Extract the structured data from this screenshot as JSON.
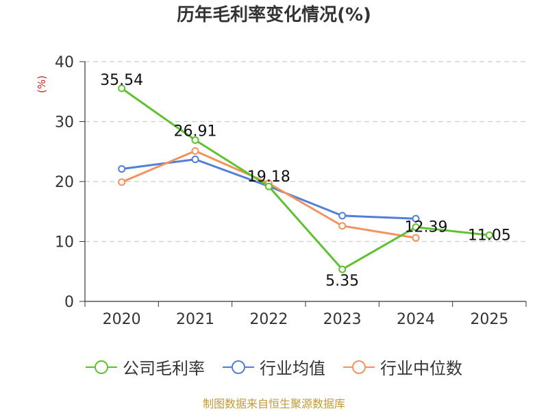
{
  "title": "历年毛利率变化情况(%)",
  "unit_label": "(%)",
  "source": "制图数据来自恒生聚源数据库",
  "colors": {
    "company": "#5ec22e",
    "industry_avg": "#4f7fd8",
    "industry_median": "#f4915c",
    "grid": "#cccccc",
    "axis": "#333333",
    "unit": "#e02020"
  },
  "chart_data": {
    "type": "line",
    "title": "历年毛利率变化情况(%)",
    "xlabel": "",
    "ylabel": "(%)",
    "categories": [
      "2020",
      "2021",
      "2022",
      "2023",
      "2024",
      "2025"
    ],
    "ylim": [
      0,
      40
    ],
    "yticks": [
      0,
      10,
      20,
      30,
      40
    ],
    "grid": true,
    "legend_position": "bottom",
    "series": [
      {
        "name": "公司毛利率",
        "key": "company",
        "values": [
          35.54,
          26.91,
          19.18,
          5.35,
          12.39,
          11.05
        ],
        "labels": [
          "35.54",
          "26.91",
          "19.18",
          "5.35",
          "12.39",
          "11.05"
        ]
      },
      {
        "name": "行业均值",
        "key": "industry_avg",
        "values": [
          22.1,
          23.7,
          19.2,
          14.3,
          13.8,
          null
        ]
      },
      {
        "name": "行业中位数",
        "key": "industry_median",
        "values": [
          19.9,
          25.1,
          19.7,
          12.6,
          10.6,
          null
        ]
      }
    ]
  }
}
